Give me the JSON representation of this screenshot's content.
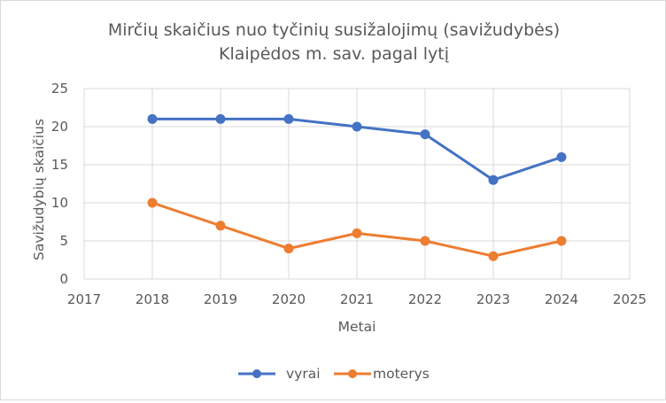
{
  "chart_data": {
    "type": "line",
    "title_lines": [
      "Mirčių skaičius nuo tyčinių susižalojimų (savižudybės)",
      "Klaipėdos m. sav. pagal lytį"
    ],
    "xlabel": "Metai",
    "ylabel": "Savižudybių skaičius",
    "xlim": [
      2017,
      2025
    ],
    "ylim": [
      0,
      25
    ],
    "x_ticks": [
      2017,
      2018,
      2019,
      2020,
      2021,
      2022,
      2023,
      2024,
      2025
    ],
    "y_ticks": [
      0,
      5,
      10,
      15,
      20,
      25
    ],
    "grid": true,
    "legend_position": "bottom",
    "x": [
      2018,
      2019,
      2020,
      2021,
      2022,
      2023,
      2024
    ],
    "series": [
      {
        "name": "vyrai",
        "color": "#4472C4",
        "values": [
          21,
          21,
          21,
          20,
          19,
          13,
          16
        ]
      },
      {
        "name": "moterys",
        "color": "#ED7D31",
        "values": [
          10,
          7,
          4,
          6,
          5,
          3,
          5
        ]
      }
    ],
    "colors": {
      "grid": "#d9d9d9",
      "text": "#595959"
    }
  }
}
